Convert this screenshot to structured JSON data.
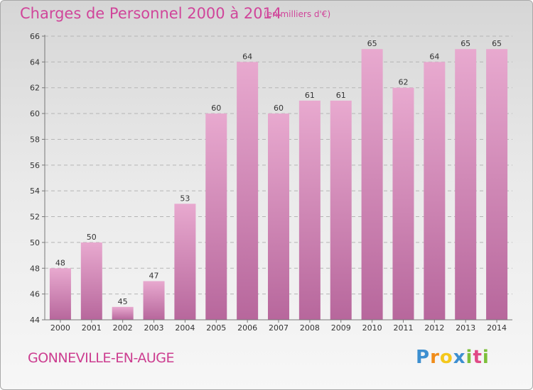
{
  "chart_data": {
    "type": "bar",
    "title": "Charges de Personnel 2000 à 2014",
    "subtitle": "(en milliers d'€)",
    "categories": [
      "2000",
      "2001",
      "2002",
      "2003",
      "2004",
      "2005",
      "2006",
      "2007",
      "2008",
      "2009",
      "2010",
      "2011",
      "2012",
      "2013",
      "2014"
    ],
    "values": [
      48,
      50,
      45,
      47,
      53,
      60,
      64,
      60,
      61,
      61,
      65,
      62,
      64,
      65,
      65
    ],
    "ylim": [
      44,
      66
    ],
    "yticks": [
      44,
      46,
      48,
      50,
      52,
      54,
      56,
      58,
      60,
      62,
      64,
      66
    ],
    "grid": true,
    "bar_color_top": "#e8a9cf",
    "bar_color_bottom": "#b7679c"
  },
  "footer": {
    "commune": "GONNEVILLE-EN-AUGE",
    "logo_letters": [
      "P",
      "r",
      "o",
      "x",
      "i",
      "t",
      "i"
    ],
    "logo_colors": [
      "#3d8fd0",
      "#f08c1a",
      "#f4c81c",
      "#3d8fd0",
      "#7dbf3a",
      "#e04a86",
      "#7dbf3a"
    ]
  },
  "colors": {
    "accent": "#d0459a"
  }
}
